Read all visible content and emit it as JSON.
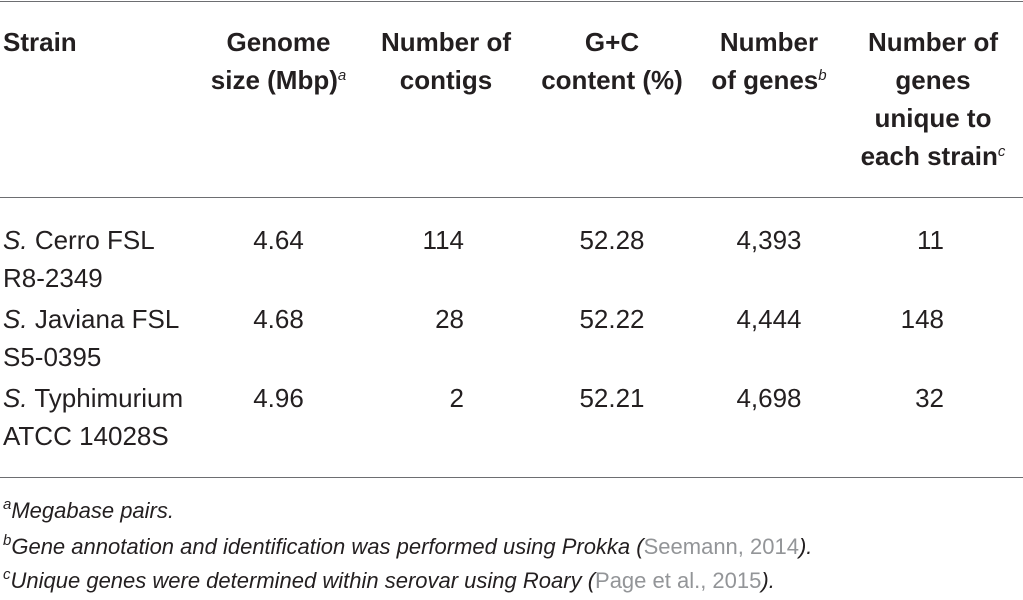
{
  "table": {
    "headers": {
      "strain": "Strain",
      "genome_size_line1": "Genome",
      "genome_size_line2": "size (Mbp)",
      "genome_size_sup": "a",
      "contigs_line1": "Number of",
      "contigs_line2": "contigs",
      "gc_line1": "G+C",
      "gc_line2": "content (%)",
      "genes_line1": "Number",
      "genes_line2": "of genes",
      "genes_sup": "b",
      "unique_line1": "Number of",
      "unique_line2": "genes",
      "unique_line3": "unique to",
      "unique_line4": "each strain",
      "unique_sup": "c"
    },
    "rows": [
      {
        "genus": "S.",
        "name_line1": "Cerro FSL",
        "name_line2": "R8-2349",
        "genome_size": "4.64",
        "contigs": "114",
        "gc_content": "52.28",
        "genes": "4,393",
        "unique_genes": "11"
      },
      {
        "genus": "S.",
        "name_line1": "Javiana FSL",
        "name_line2": "S5-0395",
        "genome_size": "4.68",
        "contigs": "28",
        "gc_content": "52.22",
        "genes": "4,444",
        "unique_genes": "148"
      },
      {
        "genus": "S.",
        "name_line1": "Typhimurium",
        "name_line2": "ATCC 14028S",
        "genome_size": "4.96",
        "contigs": "2",
        "gc_content": "52.21",
        "genes": "4,698",
        "unique_genes": "32"
      }
    ]
  },
  "footnotes": [
    {
      "marker": "a",
      "text": "Megabase pairs."
    },
    {
      "marker": "b",
      "text": "Gene annotation and identification was performed using Prokka (",
      "reference": "Seemann, 2014",
      "after": ")."
    },
    {
      "marker": "c",
      "text": "Unique genes were determined within serovar using Roary (",
      "reference": "Page et al., 2015",
      "after": ")."
    }
  ]
}
